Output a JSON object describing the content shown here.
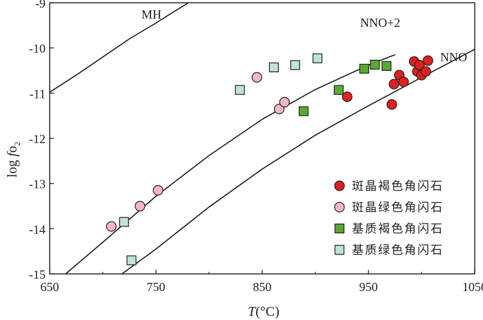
{
  "chart_data": {
    "type": "scatter",
    "x_label_italic": "T",
    "x_label_rest": "(°C)",
    "y_label_prefix": "log ",
    "y_label_italic": "f",
    "y_label_o": "o",
    "y_label_sub": "2",
    "xlim": [
      650,
      1050
    ],
    "ylim": [
      -15,
      -9
    ],
    "x_ticks": [
      650,
      750,
      850,
      950,
      1050
    ],
    "y_ticks": [
      -15,
      -14,
      -13,
      -12,
      -11,
      -10,
      -9
    ],
    "x_tick_labels": [
      "650",
      "750",
      "850",
      "950",
      "1050"
    ],
    "y_tick_labels": [
      "-15",
      "-14",
      "-13",
      "-12",
      "-11",
      "-10",
      "-9"
    ],
    "buffer_curves": [
      {
        "name": "MH",
        "label": "MH",
        "points": [
          [
            650,
            -10.98
          ],
          [
            675,
            -10.6
          ],
          [
            700,
            -10.2
          ],
          [
            725,
            -9.8
          ],
          [
            750,
            -9.45
          ],
          [
            762,
            -9.27
          ],
          [
            775,
            -9.08
          ],
          [
            782,
            -8.98
          ]
        ]
      },
      {
        "name": "NNO+2",
        "label": "NNO+2",
        "points": [
          [
            665,
            -15.0
          ],
          [
            700,
            -14.3
          ],
          [
            750,
            -13.28
          ],
          [
            800,
            -12.38
          ],
          [
            850,
            -11.58
          ],
          [
            900,
            -10.92
          ],
          [
            950,
            -10.38
          ],
          [
            975,
            -10.15
          ]
        ]
      },
      {
        "name": "NNO",
        "label": "NNO",
        "points": [
          [
            718,
            -15.0
          ],
          [
            750,
            -14.45
          ],
          [
            800,
            -13.52
          ],
          [
            850,
            -12.68
          ],
          [
            900,
            -11.93
          ],
          [
            950,
            -11.28
          ],
          [
            1000,
            -10.65
          ],
          [
            1050,
            -10.03
          ]
        ]
      }
    ],
    "series": [
      {
        "name": "斑晶褐色角闪石",
        "marker": "circle",
        "color": "#e02020",
        "points": [
          [
            930,
            -11.08
          ],
          [
            972,
            -11.25
          ],
          [
            974,
            -10.8
          ],
          [
            979,
            -10.6
          ],
          [
            983,
            -10.75
          ],
          [
            993,
            -10.3
          ],
          [
            996,
            -10.52
          ],
          [
            998,
            -10.38
          ],
          [
            1000,
            -10.6
          ],
          [
            1004,
            -10.52
          ],
          [
            1006,
            -10.28
          ]
        ]
      },
      {
        "name": "斑晶绿色角闪石",
        "marker": "circle",
        "color": "#f4b8c4",
        "points": [
          [
            708,
            -13.95
          ],
          [
            735,
            -13.5
          ],
          [
            752,
            -13.15
          ],
          [
            845,
            -10.65
          ],
          [
            866,
            -11.35
          ],
          [
            871,
            -11.2
          ]
        ]
      },
      {
        "name": "基质褐色角闪石",
        "marker": "square",
        "color": "#5aaa32",
        "points": [
          [
            889,
            -11.4
          ],
          [
            922,
            -10.93
          ],
          [
            946,
            -10.46
          ],
          [
            956,
            -10.37
          ],
          [
            967,
            -10.4
          ]
        ]
      },
      {
        "name": "基质绿色角闪石",
        "marker": "square",
        "color": "#bfe3d8",
        "points": [
          [
            720,
            -13.85
          ],
          [
            727,
            -14.7
          ],
          [
            829,
            -10.93
          ],
          [
            861,
            -10.43
          ],
          [
            881,
            -10.38
          ],
          [
            902,
            -10.23
          ]
        ]
      }
    ],
    "legend_position": "bottom-right"
  }
}
